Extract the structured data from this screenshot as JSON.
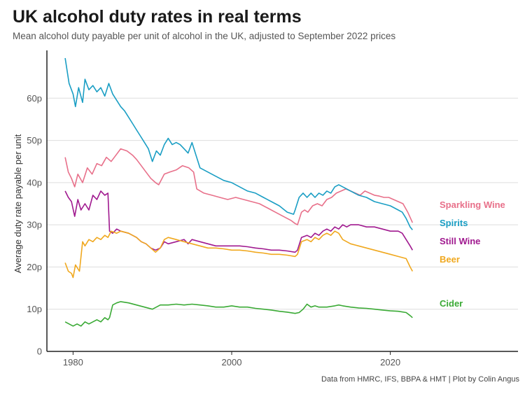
{
  "chart_data": {
    "type": "line",
    "title": "UK alcohol duty rates in real terms",
    "subtitle": "Mean alcohol duty payable per unit of alcohol in the UK, adjusted to September 2022 prices",
    "ylabel": "Average duty rate payable per unit",
    "xlabel": "",
    "caption": "Data from HMRC, IFS, BBPA & HMT | Plot by Colin Angus",
    "xlim": [
      1976.7,
      2036.1
    ],
    "ylim": [
      0,
      70
    ],
    "x_ticks": [
      1980,
      2000,
      2020
    ],
    "x_tick_labels": [
      "1980",
      "2000",
      "2020"
    ],
    "y_ticks": [
      0,
      10,
      20,
      30,
      40,
      50,
      60
    ],
    "y_tick_labels": [
      "0",
      "10p",
      "20p",
      "30p",
      "40p",
      "50p",
      "60p"
    ],
    "grid": "horizontal",
    "legend": "direct labels at right end of lines",
    "series": [
      {
        "name": "Sparkling Wine",
        "color": "#e8708a",
        "x": [
          1979.0,
          1979.4,
          1979.8,
          1980.2,
          1980.6,
          1981.2,
          1981.8,
          1982.4,
          1983.0,
          1983.6,
          1984.2,
          1984.8,
          1985.4,
          1986.0,
          1986.8,
          1987.5,
          1988.0,
          1988.6,
          1989.2,
          1989.8,
          1990.4,
          1990.8,
          1991.5,
          1992.2,
          1993.0,
          1993.8,
          1994.6,
          1995.2,
          1995.6,
          1996.5,
          1997.5,
          1998.5,
          1999.5,
          2000.5,
          2001.5,
          2002.5,
          2003.5,
          2004.5,
          2005.5,
          2006.5,
          2007.5,
          2008.0,
          2008.3,
          2008.8,
          2009.2,
          2009.6,
          2010.2,
          2010.8,
          2011.4,
          2012.0,
          2012.6,
          2013.2,
          2013.8,
          2014.4,
          2015.0,
          2015.6,
          2016.2,
          2016.8,
          2017.4,
          2018.0,
          2018.6,
          2019.2,
          2019.8,
          2020.4,
          2021.0,
          2021.6,
          2022.2,
          2022.8
        ],
        "values": [
          46.0,
          42.5,
          41.0,
          39.0,
          42.0,
          40.0,
          43.5,
          42.0,
          44.5,
          44.0,
          46.0,
          45.0,
          46.5,
          48.0,
          47.5,
          46.5,
          45.5,
          44.0,
          42.5,
          41.0,
          40.0,
          39.5,
          42.0,
          42.5,
          43.0,
          44.0,
          43.5,
          42.5,
          38.5,
          37.5,
          37.0,
          36.5,
          36.0,
          36.5,
          36.0,
          35.5,
          35.0,
          34.0,
          33.0,
          32.0,
          31.0,
          30.3,
          30.0,
          33.0,
          33.5,
          33.0,
          34.5,
          35.0,
          34.5,
          36.0,
          36.5,
          37.5,
          38.0,
          38.5,
          38.0,
          37.5,
          37.0,
          38.0,
          37.5,
          37.0,
          36.8,
          36.5,
          36.5,
          36.0,
          35.5,
          35.0,
          33.0,
          30.5
        ]
      },
      {
        "name": "Spirits",
        "color": "#1a9ec4",
        "x": [
          1979.0,
          1979.5,
          1980.0,
          1980.3,
          1980.7,
          1981.2,
          1981.5,
          1982.0,
          1982.5,
          1983.0,
          1983.5,
          1984.0,
          1984.5,
          1985.0,
          1985.5,
          1986.0,
          1986.5,
          1987.0,
          1987.5,
          1988.0,
          1988.5,
          1989.0,
          1989.5,
          1990.0,
          1990.5,
          1991.0,
          1991.5,
          1992.0,
          1992.5,
          1993.0,
          1993.5,
          1994.0,
          1994.5,
          1995.0,
          1995.5,
          1996.0,
          1997.0,
          1998.0,
          1999.0,
          2000.0,
          2001.0,
          2002.0,
          2003.0,
          2004.0,
          2005.0,
          2006.0,
          2007.0,
          2007.8,
          2008.0,
          2008.5,
          2009.0,
          2009.5,
          2010.0,
          2010.5,
          2011.0,
          2011.5,
          2012.0,
          2012.5,
          2013.0,
          2013.5,
          2014.0,
          2014.5,
          2015.0,
          2016.0,
          2017.0,
          2018.0,
          2019.0,
          2020.0,
          2021.0,
          2021.5,
          2022.0,
          2022.5,
          2022.8
        ],
        "values": [
          69.5,
          63.5,
          61.0,
          58.0,
          62.5,
          59.0,
          64.5,
          62.0,
          63.0,
          61.5,
          62.5,
          60.5,
          63.5,
          61.0,
          59.5,
          58.0,
          57.0,
          55.5,
          54.0,
          52.5,
          51.0,
          49.5,
          48.0,
          45.0,
          47.5,
          46.5,
          49.0,
          50.5,
          49.0,
          49.5,
          49.0,
          48.0,
          47.0,
          49.5,
          46.5,
          43.5,
          42.5,
          41.5,
          40.5,
          40.0,
          39.0,
          38.0,
          37.5,
          36.5,
          35.5,
          34.5,
          33.0,
          32.5,
          33.5,
          36.5,
          37.5,
          36.5,
          37.5,
          36.5,
          37.5,
          37.0,
          38.0,
          37.5,
          39.0,
          39.5,
          39.0,
          38.5,
          38.0,
          37.0,
          36.5,
          35.5,
          35.0,
          34.5,
          33.5,
          33.0,
          31.5,
          29.5,
          28.8
        ]
      },
      {
        "name": "Still Wine",
        "color": "#a0198f",
        "x": [
          1979.0,
          1979.4,
          1979.8,
          1980.2,
          1980.6,
          1981.0,
          1981.5,
          1982.0,
          1982.5,
          1983.0,
          1983.5,
          1984.0,
          1984.4,
          1984.6,
          1985.0,
          1985.5,
          1986.0,
          1987.0,
          1988.0,
          1988.6,
          1989.2,
          1989.8,
          1990.4,
          1991.0,
          1991.5,
          1992.0,
          1993.0,
          1994.0,
          1994.5,
          1995.0,
          1996.0,
          1997.0,
          1998.0,
          1999.0,
          2000.0,
          2001.0,
          2002.0,
          2003.0,
          2004.0,
          2005.0,
          2006.0,
          2007.0,
          2008.0,
          2008.3,
          2008.8,
          2009.5,
          2010.0,
          2010.5,
          2011.0,
          2011.5,
          2012.0,
          2012.5,
          2013.0,
          2013.5,
          2014.0,
          2014.5,
          2015.0,
          2016.0,
          2017.0,
          2018.0,
          2019.0,
          2020.0,
          2021.0,
          2021.5,
          2022.0,
          2022.5,
          2022.8
        ],
        "values": [
          38.0,
          36.5,
          35.5,
          32.0,
          36.0,
          33.5,
          35.0,
          33.5,
          37.0,
          36.0,
          38.0,
          37.0,
          37.5,
          28.5,
          28.0,
          29.0,
          28.5,
          28.0,
          27.0,
          26.0,
          25.5,
          24.5,
          24.0,
          24.5,
          26.0,
          25.5,
          26.0,
          26.5,
          25.5,
          26.5,
          26.0,
          25.5,
          25.0,
          25.0,
          25.0,
          25.0,
          24.8,
          24.5,
          24.3,
          24.0,
          24.0,
          23.8,
          23.5,
          24.0,
          27.0,
          27.5,
          27.0,
          28.0,
          27.5,
          28.5,
          29.0,
          28.5,
          29.5,
          29.0,
          30.0,
          29.5,
          30.0,
          30.0,
          29.5,
          29.5,
          29.0,
          28.5,
          28.5,
          28.0,
          26.5,
          25.0,
          24.0
        ]
      },
      {
        "name": "Beer",
        "color": "#f0a81e",
        "x": [
          1979.0,
          1979.4,
          1979.8,
          1980.0,
          1980.3,
          1980.8,
          1981.2,
          1981.5,
          1982.0,
          1982.5,
          1983.0,
          1983.5,
          1984.0,
          1984.4,
          1984.8,
          1985.5,
          1986.0,
          1987.0,
          1988.0,
          1988.6,
          1989.2,
          1989.8,
          1990.4,
          1991.0,
          1991.5,
          1992.0,
          1993.0,
          1994.0,
          1995.0,
          1996.0,
          1997.0,
          1998.0,
          1999.0,
          2000.0,
          2001.0,
          2002.0,
          2003.0,
          2004.0,
          2005.0,
          2006.0,
          2007.0,
          2008.0,
          2008.3,
          2008.8,
          2009.5,
          2010.0,
          2010.5,
          2011.0,
          2011.5,
          2012.0,
          2012.5,
          2013.0,
          2013.5,
          2014.0,
          2015.0,
          2016.0,
          2017.0,
          2018.0,
          2019.0,
          2020.0,
          2021.0,
          2022.0,
          2022.5,
          2022.8
        ],
        "values": [
          21.0,
          19.0,
          18.5,
          17.5,
          20.5,
          19.0,
          26.0,
          25.0,
          26.5,
          26.0,
          27.0,
          26.5,
          27.5,
          27.0,
          28.5,
          28.0,
          28.5,
          28.0,
          27.0,
          26.0,
          25.5,
          24.5,
          23.5,
          24.5,
          26.5,
          27.0,
          26.5,
          26.0,
          25.5,
          25.0,
          24.5,
          24.5,
          24.3,
          24.0,
          24.0,
          23.8,
          23.5,
          23.3,
          23.0,
          23.0,
          22.8,
          22.5,
          23.0,
          26.0,
          26.5,
          26.0,
          27.0,
          26.5,
          27.5,
          28.0,
          27.5,
          28.5,
          28.0,
          26.5,
          25.5,
          25.0,
          24.5,
          24.0,
          23.5,
          23.0,
          22.5,
          22.0,
          20.0,
          19.0
        ]
      },
      {
        "name": "Cider",
        "color": "#3aaa35",
        "x": [
          1979.0,
          1979.5,
          1980.0,
          1980.5,
          1981.0,
          1981.5,
          1982.0,
          1982.5,
          1983.0,
          1983.5,
          1984.0,
          1984.4,
          1984.6,
          1985.0,
          1985.5,
          1986.0,
          1987.0,
          1988.0,
          1989.0,
          1990.0,
          1990.5,
          1991.0,
          1992.0,
          1993.0,
          1994.0,
          1995.0,
          1996.0,
          1997.0,
          1998.0,
          1999.0,
          2000.0,
          2001.0,
          2002.0,
          2003.0,
          2004.0,
          2005.0,
          2006.0,
          2007.0,
          2008.0,
          2008.5,
          2009.0,
          2009.5,
          2010.0,
          2010.5,
          2011.0,
          2012.0,
          2013.0,
          2013.5,
          2014.0,
          2015.0,
          2016.0,
          2017.0,
          2018.0,
          2019.0,
          2020.0,
          2021.0,
          2022.0,
          2022.5,
          2022.8
        ],
        "values": [
          7.0,
          6.5,
          6.0,
          6.5,
          6.0,
          7.0,
          6.5,
          7.0,
          7.5,
          7.0,
          8.0,
          7.5,
          8.0,
          11.0,
          11.5,
          11.8,
          11.5,
          11.0,
          10.5,
          10.0,
          10.5,
          11.0,
          11.0,
          11.2,
          11.0,
          11.2,
          11.0,
          10.8,
          10.5,
          10.5,
          10.8,
          10.5,
          10.5,
          10.2,
          10.0,
          9.8,
          9.5,
          9.3,
          9.0,
          9.2,
          10.0,
          11.2,
          10.5,
          10.8,
          10.5,
          10.5,
          10.8,
          11.0,
          10.8,
          10.5,
          10.3,
          10.2,
          10.0,
          9.8,
          9.6,
          9.5,
          9.2,
          8.5,
          8.0
        ]
      }
    ]
  }
}
